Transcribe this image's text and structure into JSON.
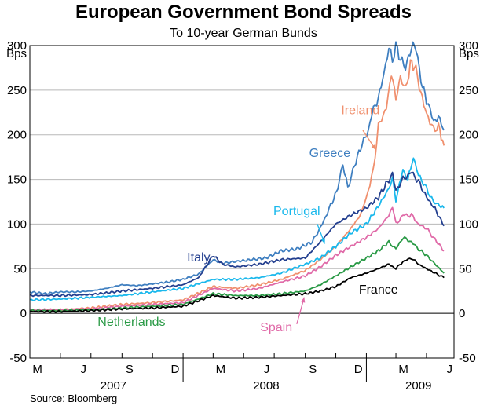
{
  "title": "European Government Bond Spreads",
  "subtitle": "To 10-year German Bunds",
  "source": "Source: Bloomberg",
  "chart_data": {
    "type": "line",
    "title": "European Government Bond Spreads",
    "subtitle": "To 10-year German Bunds",
    "unit_left": "Bps",
    "unit_right": "Bps",
    "ylim": [
      -50,
      300
    ],
    "yticks": [
      -50,
      0,
      50,
      100,
      150,
      200,
      250,
      300
    ],
    "xlim": [
      "2007-03-01",
      "2009-06-25"
    ],
    "month_ticks": [
      "M",
      "J",
      "S",
      "D",
      "M",
      "J",
      "S",
      "D",
      "M",
      "J"
    ],
    "month_tick_dates": [
      "2007-05-01",
      "2007-07-01",
      "2007-09-01",
      "2007-11-01",
      "2008-01-01",
      "2008-03-01",
      "2008-05-01",
      "2008-07-01",
      "2008-09-01",
      "2008-11-01",
      "2009-01-01",
      "2009-03-01",
      "2009-05-01",
      "2009-07-01"
    ],
    "month_labels": [
      {
        "label": "M",
        "date": "2007-03-16"
      },
      {
        "label": "J",
        "date": "2007-06-16"
      },
      {
        "label": "S",
        "date": "2007-09-16"
      },
      {
        "label": "D",
        "date": "2007-12-16"
      },
      {
        "label": "M",
        "date": "2008-03-16"
      },
      {
        "label": "J",
        "date": "2008-06-16"
      },
      {
        "label": "S",
        "date": "2008-09-16"
      },
      {
        "label": "D",
        "date": "2008-12-16"
      },
      {
        "label": "M",
        "date": "2009-03-16"
      },
      {
        "label": "J",
        "date": "2009-06-16"
      }
    ],
    "year_labels": [
      {
        "label": "2007",
        "date": "2007-08-15"
      },
      {
        "label": "2008",
        "date": "2008-06-15"
      },
      {
        "label": "2009",
        "date": "2009-04-15"
      }
    ],
    "grid": true,
    "series": [
      {
        "name": "Greece",
        "color": "#3f7fc0",
        "label_date": "2008-10-20",
        "label_y": 175,
        "points": [
          [
            "2007-03-01",
            24
          ],
          [
            "2007-04-01",
            22
          ],
          [
            "2007-05-01",
            24
          ],
          [
            "2007-06-01",
            24
          ],
          [
            "2007-07-01",
            25
          ],
          [
            "2007-08-01",
            28
          ],
          [
            "2007-09-01",
            32
          ],
          [
            "2007-10-01",
            31
          ],
          [
            "2007-11-01",
            33
          ],
          [
            "2007-12-01",
            35
          ],
          [
            "2008-01-01",
            38
          ],
          [
            "2008-02-01",
            44
          ],
          [
            "2008-03-01",
            60
          ],
          [
            "2008-03-20",
            56
          ],
          [
            "2008-04-15",
            58
          ],
          [
            "2008-05-15",
            60
          ],
          [
            "2008-06-15",
            62
          ],
          [
            "2008-07-15",
            70
          ],
          [
            "2008-08-15",
            72
          ],
          [
            "2008-09-15",
            80
          ],
          [
            "2008-10-05",
            100
          ],
          [
            "2008-10-25",
            125
          ],
          [
            "2008-11-05",
            140
          ],
          [
            "2008-11-15",
            168
          ],
          [
            "2008-11-25",
            140
          ],
          [
            "2008-12-05",
            160
          ],
          [
            "2008-12-20",
            185
          ],
          [
            "2009-01-05",
            205
          ],
          [
            "2009-01-15",
            230
          ],
          [
            "2009-01-25",
            240
          ],
          [
            "2009-02-05",
            270
          ],
          [
            "2009-02-15",
            296
          ],
          [
            "2009-02-22",
            285
          ],
          [
            "2009-03-01",
            300
          ],
          [
            "2009-03-10",
            285
          ],
          [
            "2009-03-20",
            275
          ],
          [
            "2009-04-01",
            298
          ],
          [
            "2009-04-10",
            300
          ],
          [
            "2009-04-20",
            260
          ],
          [
            "2009-05-01",
            240
          ],
          [
            "2009-05-15",
            215
          ],
          [
            "2009-05-25",
            220
          ],
          [
            "2009-06-05",
            205
          ]
        ]
      },
      {
        "name": "Ireland",
        "color": "#f0906e",
        "label_date": "2008-12-20",
        "label_y": 223,
        "points": [
          [
            "2007-03-01",
            3
          ],
          [
            "2007-05-01",
            4
          ],
          [
            "2007-07-01",
            6
          ],
          [
            "2007-09-01",
            10
          ],
          [
            "2007-11-01",
            12
          ],
          [
            "2008-01-01",
            15
          ],
          [
            "2008-03-01",
            30
          ],
          [
            "2008-04-15",
            28
          ],
          [
            "2008-06-01",
            32
          ],
          [
            "2008-07-15",
            38
          ],
          [
            "2008-09-01",
            48
          ],
          [
            "2008-10-01",
            60
          ],
          [
            "2008-11-01",
            75
          ],
          [
            "2008-12-01",
            95
          ],
          [
            "2008-12-20",
            110
          ],
          [
            "2009-01-01",
            130
          ],
          [
            "2009-01-15",
            160
          ],
          [
            "2009-01-25",
            210
          ],
          [
            "2009-02-10",
            230
          ],
          [
            "2009-02-20",
            270
          ],
          [
            "2009-03-01",
            240
          ],
          [
            "2009-03-10",
            265
          ],
          [
            "2009-03-20",
            250
          ],
          [
            "2009-03-30",
            280
          ],
          [
            "2009-04-10",
            275
          ],
          [
            "2009-04-20",
            245
          ],
          [
            "2009-05-01",
            225
          ],
          [
            "2009-05-15",
            205
          ],
          [
            "2009-05-25",
            210
          ],
          [
            "2009-06-05",
            188
          ]
        ]
      },
      {
        "name": "Portugal",
        "color": "#1ab8ec",
        "label_date": "2008-08-15",
        "label_y": 110,
        "points": [
          [
            "2007-03-01",
            15
          ],
          [
            "2007-05-01",
            16
          ],
          [
            "2007-07-01",
            18
          ],
          [
            "2007-09-01",
            20
          ],
          [
            "2007-11-01",
            24
          ],
          [
            "2008-01-01",
            28
          ],
          [
            "2008-03-01",
            38
          ],
          [
            "2008-04-15",
            38
          ],
          [
            "2008-06-01",
            40
          ],
          [
            "2008-07-15",
            45
          ],
          [
            "2008-09-01",
            55
          ],
          [
            "2008-10-01",
            62
          ],
          [
            "2008-11-01",
            75
          ],
          [
            "2008-12-01",
            90
          ],
          [
            "2009-01-01",
            100
          ],
          [
            "2009-01-25",
            120
          ],
          [
            "2009-02-15",
            140
          ],
          [
            "2009-02-22",
            150
          ],
          [
            "2009-03-01",
            128
          ],
          [
            "2009-03-15",
            160
          ],
          [
            "2009-03-25",
            150
          ],
          [
            "2009-04-05",
            175
          ],
          [
            "2009-04-15",
            155
          ],
          [
            "2009-05-01",
            140
          ],
          [
            "2009-05-15",
            125
          ],
          [
            "2009-06-05",
            118
          ]
        ]
      },
      {
        "name": "Italy",
        "color": "#233f8f",
        "label_date": "2008-02-01",
        "label_y": 58,
        "points": [
          [
            "2007-03-01",
            20
          ],
          [
            "2007-05-01",
            20
          ],
          [
            "2007-07-01",
            21
          ],
          [
            "2007-09-01",
            25
          ],
          [
            "2007-11-01",
            28
          ],
          [
            "2008-01-01",
            32
          ],
          [
            "2008-02-01",
            40
          ],
          [
            "2008-03-01",
            65
          ],
          [
            "2008-03-20",
            55
          ],
          [
            "2008-04-15",
            52
          ],
          [
            "2008-06-01",
            55
          ],
          [
            "2008-07-15",
            60
          ],
          [
            "2008-09-01",
            62
          ],
          [
            "2008-10-01",
            80
          ],
          [
            "2008-11-01",
            100
          ],
          [
            "2008-12-01",
            110
          ],
          [
            "2009-01-01",
            118
          ],
          [
            "2009-01-25",
            130
          ],
          [
            "2009-02-15",
            150
          ],
          [
            "2009-02-22",
            155
          ],
          [
            "2009-03-01",
            138
          ],
          [
            "2009-03-15",
            150
          ],
          [
            "2009-04-01",
            158
          ],
          [
            "2009-04-15",
            148
          ],
          [
            "2009-05-01",
            130
          ],
          [
            "2009-05-15",
            120
          ],
          [
            "2009-06-05",
            98
          ]
        ]
      },
      {
        "name": "Spain",
        "color": "#e06aa8",
        "label_date": "2008-07-05",
        "label_y": -20,
        "points": [
          [
            "2007-03-01",
            4
          ],
          [
            "2007-05-01",
            4
          ],
          [
            "2007-07-01",
            5
          ],
          [
            "2007-09-01",
            8
          ],
          [
            "2007-11-01",
            10
          ],
          [
            "2008-01-01",
            12
          ],
          [
            "2008-03-01",
            28
          ],
          [
            "2008-04-15",
            25
          ],
          [
            "2008-06-01",
            28
          ],
          [
            "2008-07-15",
            35
          ],
          [
            "2008-09-01",
            42
          ],
          [
            "2008-10-01",
            52
          ],
          [
            "2008-11-01",
            65
          ],
          [
            "2008-12-01",
            75
          ],
          [
            "2009-01-01",
            85
          ],
          [
            "2009-01-25",
            95
          ],
          [
            "2009-02-15",
            110
          ],
          [
            "2009-02-22",
            120
          ],
          [
            "2009-03-01",
            100
          ],
          [
            "2009-03-15",
            110
          ],
          [
            "2009-04-01",
            110
          ],
          [
            "2009-04-15",
            100
          ],
          [
            "2009-05-01",
            95
          ],
          [
            "2009-05-15",
            85
          ],
          [
            "2009-06-05",
            70
          ]
        ]
      },
      {
        "name": "Netherlands",
        "color": "#2a9a46",
        "label_date": "2007-09-20",
        "label_y": -14,
        "points": [
          [
            "2007-03-01",
            3
          ],
          [
            "2007-05-01",
            3
          ],
          [
            "2007-07-01",
            4
          ],
          [
            "2007-09-01",
            6
          ],
          [
            "2007-11-01",
            8
          ],
          [
            "2008-01-01",
            10
          ],
          [
            "2008-03-01",
            22
          ],
          [
            "2008-04-15",
            20
          ],
          [
            "2008-06-01",
            20
          ],
          [
            "2008-07-15",
            22
          ],
          [
            "2008-09-01",
            25
          ],
          [
            "2008-10-01",
            32
          ],
          [
            "2008-11-01",
            42
          ],
          [
            "2008-12-01",
            52
          ],
          [
            "2009-01-01",
            62
          ],
          [
            "2009-01-25",
            70
          ],
          [
            "2009-02-15",
            80
          ],
          [
            "2009-03-01",
            72
          ],
          [
            "2009-03-15",
            85
          ],
          [
            "2009-04-01",
            80
          ],
          [
            "2009-04-15",
            72
          ],
          [
            "2009-05-01",
            65
          ],
          [
            "2009-06-05",
            45
          ]
        ]
      },
      {
        "name": "France",
        "color": "#000000",
        "label_date": "2009-01-25",
        "label_y": 22,
        "points": [
          [
            "2007-03-01",
            2
          ],
          [
            "2007-05-01",
            2
          ],
          [
            "2007-07-01",
            3
          ],
          [
            "2007-09-01",
            5
          ],
          [
            "2007-11-01",
            6
          ],
          [
            "2008-01-01",
            8
          ],
          [
            "2008-03-01",
            20
          ],
          [
            "2008-04-15",
            17
          ],
          [
            "2008-06-01",
            18
          ],
          [
            "2008-07-15",
            20
          ],
          [
            "2008-09-01",
            22
          ],
          [
            "2008-10-01",
            25
          ],
          [
            "2008-11-01",
            30
          ],
          [
            "2008-12-01",
            40
          ],
          [
            "2009-01-01",
            45
          ],
          [
            "2009-01-25",
            50
          ],
          [
            "2009-02-15",
            55
          ],
          [
            "2009-03-01",
            50
          ],
          [
            "2009-03-15",
            58
          ],
          [
            "2009-04-01",
            62
          ],
          [
            "2009-04-15",
            55
          ],
          [
            "2009-05-01",
            50
          ],
          [
            "2009-06-05",
            40
          ]
        ]
      }
    ]
  }
}
